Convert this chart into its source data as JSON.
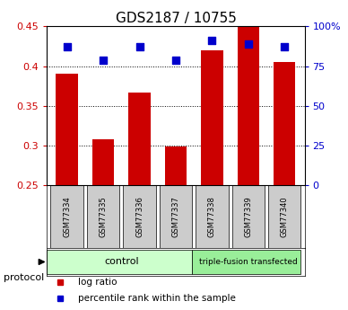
{
  "title": "GDS2187 / 10755",
  "samples": [
    "GSM77334",
    "GSM77335",
    "GSM77336",
    "GSM77337",
    "GSM77338",
    "GSM77339",
    "GSM77340"
  ],
  "log_ratio": [
    0.39,
    0.308,
    0.367,
    0.299,
    0.42,
    0.45,
    0.405
  ],
  "percentile_rank": [
    87,
    79,
    87,
    79,
    91,
    89,
    87
  ],
  "left_ylim": [
    0.25,
    0.45
  ],
  "left_yticks": [
    0.25,
    0.3,
    0.35,
    0.4,
    0.45
  ],
  "left_yticklabels": [
    "0.25",
    "0.3",
    "0.35",
    "0.4",
    "0.45"
  ],
  "right_ylim": [
    0,
    100
  ],
  "right_yticks": [
    0,
    25,
    50,
    75,
    100
  ],
  "right_yticklabels": [
    "0",
    "25",
    "50",
    "75",
    "100%"
  ],
  "bar_color": "#CC0000",
  "dot_color": "#0000CC",
  "bar_width": 0.6,
  "grid_color": "#000000",
  "n_control": 4,
  "n_treatment": 3,
  "control_label": "control",
  "treatment_label": "triple-fusion transfected",
  "protocol_label": "protocol",
  "legend_bar_label": "log ratio",
  "legend_dot_label": "percentile rank within the sample",
  "control_color": "#CCFFCC",
  "treatment_color": "#99EE99",
  "sample_box_color": "#CCCCCC",
  "background_color": "#FFFFFF",
  "title_fontsize": 11,
  "axis_fontsize": 8,
  "dot_size": 40
}
